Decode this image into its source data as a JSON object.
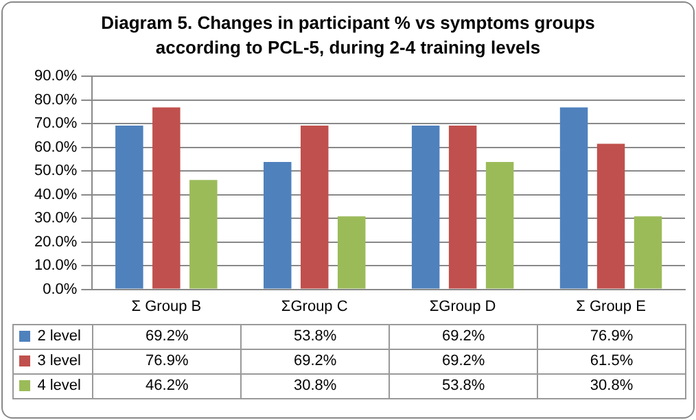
{
  "chart_data": {
    "type": "bar",
    "title": "Diagram 5. Changes in participant % vs symptoms groups according to PCL-5, during 2-4 training levels",
    "categories": [
      "Σ Group B",
      "ΣGroup C",
      "ΣGroup D",
      "Σ Group E"
    ],
    "series": [
      {
        "name": "2 level",
        "color": "#4f81bd",
        "values": [
          69.2,
          53.8,
          69.2,
          76.9
        ],
        "value_labels": [
          "69.2%",
          "53.8%",
          "69.2%",
          "76.9%"
        ]
      },
      {
        "name": "3 level",
        "color": "#c0504d",
        "values": [
          76.9,
          69.2,
          69.2,
          61.5
        ],
        "value_labels": [
          "76.9%",
          "69.2%",
          "69.2%",
          "61.5%"
        ]
      },
      {
        "name": "4 level",
        "color": "#9bbb59",
        "values": [
          46.2,
          30.8,
          53.8,
          30.8
        ],
        "value_labels": [
          "46.2%",
          "30.8%",
          "53.8%",
          "30.8%"
        ]
      }
    ],
    "ylim": [
      0,
      90
    ],
    "yticks": [
      {
        "value": 0,
        "label": "0.0%"
      },
      {
        "value": 10,
        "label": "10.0%"
      },
      {
        "value": 20,
        "label": "20.0%"
      },
      {
        "value": 30,
        "label": "30.0%"
      },
      {
        "value": 40,
        "label": "40.0%"
      },
      {
        "value": 50,
        "label": "50.0%"
      },
      {
        "value": 60,
        "label": "60.0%"
      },
      {
        "value": 70,
        "label": "70.0%"
      },
      {
        "value": 80,
        "label": "80.0%"
      },
      {
        "value": 90,
        "label": "90.0%"
      }
    ],
    "grid": "y",
    "legend": "bottom"
  }
}
